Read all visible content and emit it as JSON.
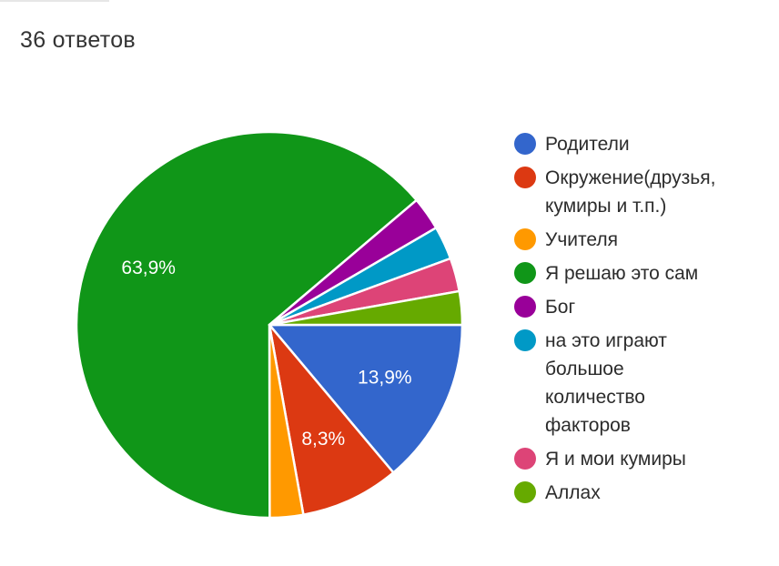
{
  "header": {
    "responses_text": "36 ответов"
  },
  "chart_data": {
    "type": "pie",
    "title": "",
    "total_responses": 36,
    "slices": [
      {
        "label": "Родители",
        "value": 13.9,
        "display": "13,9%",
        "color": "#3366cc"
      },
      {
        "label": "Окружение(друзья,\nкумиры и т.п.)",
        "value": 8.3,
        "display": "8,3%",
        "color": "#dc3912"
      },
      {
        "label": "Учителя",
        "value": 2.8,
        "display": "",
        "color": "#ff9900"
      },
      {
        "label": "Я решаю это сам",
        "value": 63.9,
        "display": "63,9%",
        "color": "#109618"
      },
      {
        "label": "Бог",
        "value": 2.8,
        "display": "",
        "color": "#990099"
      },
      {
        "label": "на это играют\nбольшое\nколичество\nфакторов",
        "value": 2.8,
        "display": "",
        "color": "#0099c6"
      },
      {
        "label": "Я и мои кумиры",
        "value": 2.8,
        "display": "",
        "color": "#dd4477"
      },
      {
        "label": "Аллах",
        "value": 2.8,
        "display": "",
        "color": "#66aa00"
      }
    ],
    "legend_position": "right"
  }
}
